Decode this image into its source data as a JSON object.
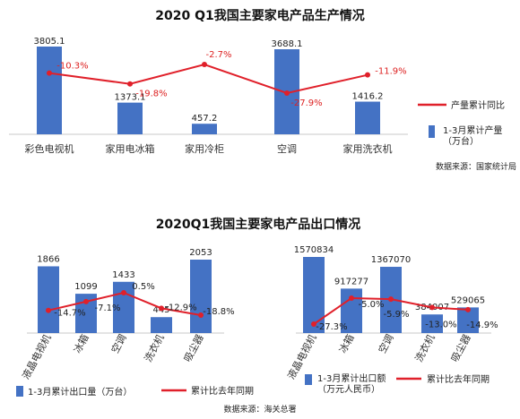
{
  "colors": {
    "bar": "#4472C4",
    "line": "#E0202A",
    "bar_outline": "#2F5597"
  },
  "chart_data": [
    {
      "id": "production",
      "type": "bar+line",
      "title": "2020 Q1我国主要家电产品生产情况",
      "categories": [
        "彩色电视机",
        "家用电冰箱",
        "家用冷柜",
        "空调",
        "家用洗衣机"
      ],
      "series": [
        {
          "name": "1-3月累计产量\n（万台）",
          "kind": "bar",
          "values": [
            3805.1,
            1373.1,
            457.2,
            3688.1,
            1416.2
          ],
          "labels": [
            "3805.1",
            "1373.1",
            "457.2",
            "3688.1",
            "1416.2"
          ]
        },
        {
          "name": "产量累计同比",
          "kind": "line",
          "values": [
            -10.3,
            -19.8,
            -2.7,
            -27.9,
            -11.9
          ],
          "labels": [
            "-10.3%",
            "-19.8%",
            "-2.7%",
            "-27.9%",
            "-11.9%"
          ]
        }
      ],
      "source": "数据来源：国家统计局"
    },
    {
      "id": "export_volume",
      "type": "bar+line",
      "title": "2020Q1我国主要家电产品出口情况",
      "categories": [
        "液晶电视机",
        "冰箱",
        "空调",
        "洗衣机",
        "吸尘器"
      ],
      "series": [
        {
          "name": "1-3月累计出口量（万台）",
          "kind": "bar",
          "values": [
            1866,
            1099,
            1433,
            445,
            2053
          ],
          "labels": [
            "1866",
            "1099",
            "1433",
            "445",
            "2053"
          ]
        },
        {
          "name": "累计比去年同期",
          "kind": "line",
          "values": [
            -14.7,
            -7.1,
            0.5,
            -12.9,
            -18.8
          ],
          "labels": [
            "-14.7%",
            "-7.1%",
            "0.5%",
            "-12.9%",
            "-18.8%"
          ]
        }
      ],
      "source": "数据来源：海关总署"
    },
    {
      "id": "export_value",
      "type": "bar+line",
      "categories": [
        "液晶电视机",
        "冰箱",
        "空调",
        "洗衣机",
        "吸尘器"
      ],
      "series": [
        {
          "name": "1-3月累计出口额\n（万元人民币）",
          "kind": "bar",
          "values": [
            1570834,
            917277,
            1367070,
            384007,
            529065
          ],
          "labels": [
            "1570834",
            "917277",
            "1367070",
            "384007",
            "529065"
          ]
        },
        {
          "name": "累计比去年同期",
          "kind": "line",
          "values": [
            -27.3,
            -5.0,
            -5.9,
            -13.0,
            -14.9
          ],
          "labels": [
            "-27.3%",
            "-5.0%",
            "-5.9%",
            "-13.0%",
            "-14.9%"
          ]
        }
      ]
    }
  ]
}
